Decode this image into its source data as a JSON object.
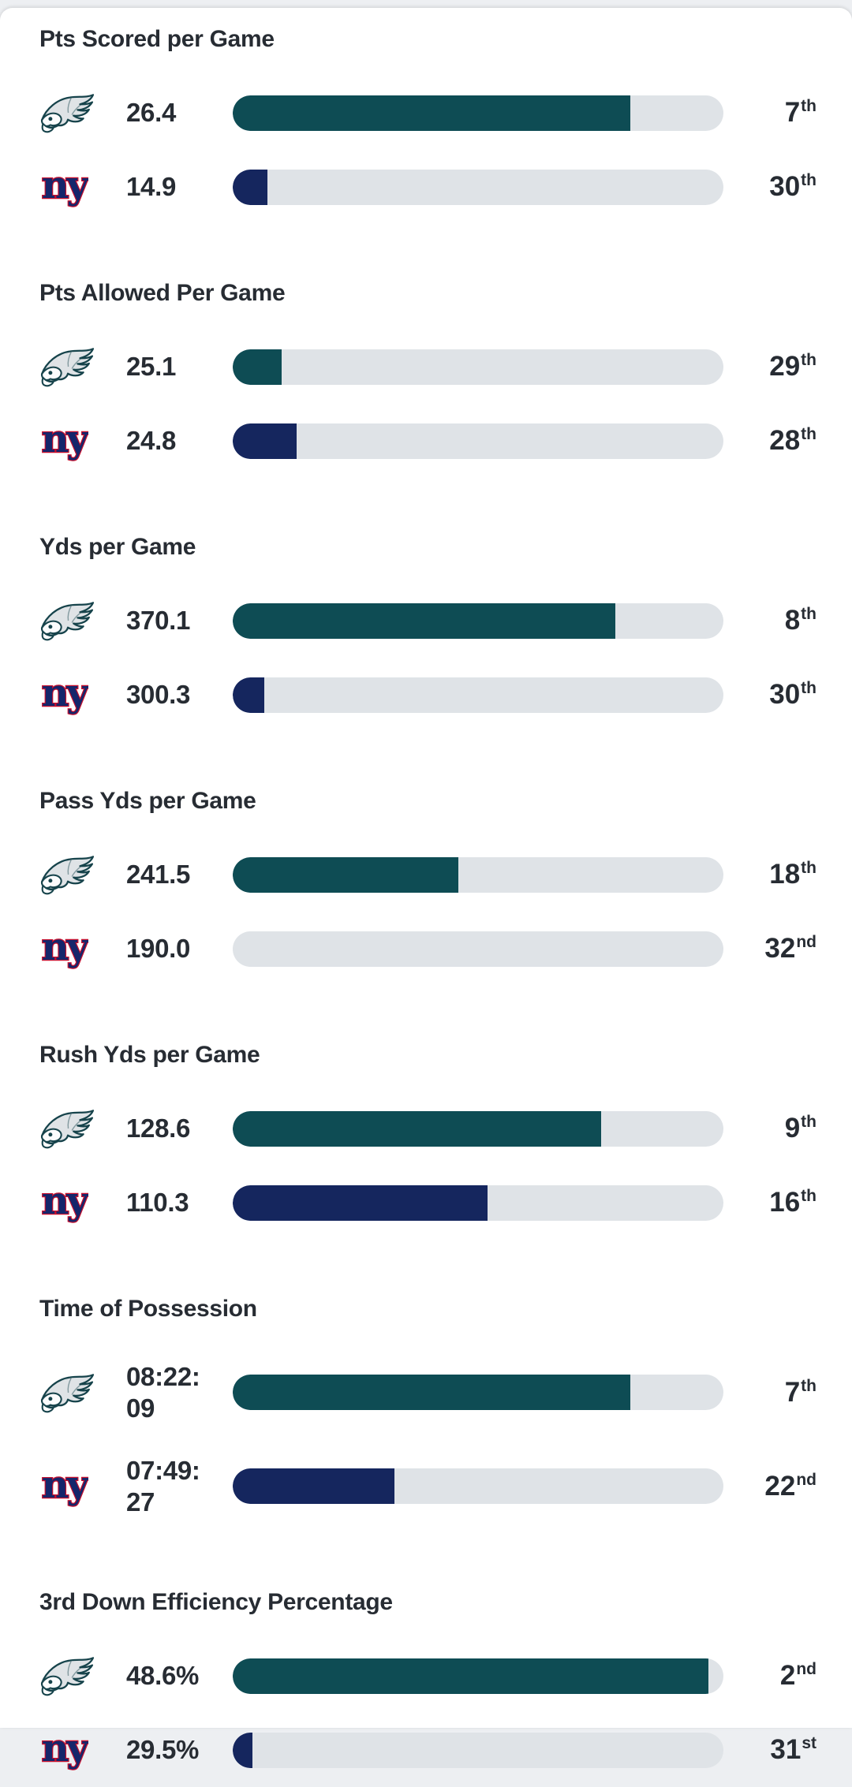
{
  "page": {
    "background_color": "#edeff2",
    "card_background": "#ffffff",
    "text_color": "#272c33",
    "bar_track_color": "#dfe3e7"
  },
  "teams": {
    "eagles": {
      "logo_icon": "eagles-logo-icon",
      "bar_color": "#0e4c54"
    },
    "giants": {
      "logo_icon": "ny-giants-logo-icon",
      "bar_color": "#15265e",
      "logo_text": "ny"
    }
  },
  "sections": [
    {
      "title": "Pts Scored per Game",
      "rows": [
        {
          "team": "eagles",
          "value": "26.4",
          "rank": "7",
          "ordinal": "th",
          "fill_pct": 81,
          "color": "#0e4c54"
        },
        {
          "team": "giants",
          "value": "14.9",
          "rank": "30",
          "ordinal": "th",
          "fill_pct": 7,
          "color": "#15265e"
        }
      ]
    },
    {
      "title": "Pts Allowed Per Game",
      "rows": [
        {
          "team": "eagles",
          "value": "25.1",
          "rank": "29",
          "ordinal": "th",
          "fill_pct": 10,
          "color": "#0e4c54"
        },
        {
          "team": "giants",
          "value": "24.8",
          "rank": "28",
          "ordinal": "th",
          "fill_pct": 13,
          "color": "#15265e"
        }
      ]
    },
    {
      "title": "Yds per Game",
      "rows": [
        {
          "team": "eagles",
          "value": "370.1",
          "rank": "8",
          "ordinal": "th",
          "fill_pct": 78,
          "color": "#0e4c54"
        },
        {
          "team": "giants",
          "value": "300.3",
          "rank": "30",
          "ordinal": "th",
          "fill_pct": 6.5,
          "color": "#15265e"
        }
      ]
    },
    {
      "title": "Pass Yds per Game",
      "rows": [
        {
          "team": "eagles",
          "value": "241.5",
          "rank": "18",
          "ordinal": "th",
          "fill_pct": 46,
          "color": "#0e4c54"
        },
        {
          "team": "giants",
          "value": "190.0",
          "rank": "32",
          "ordinal": "nd",
          "fill_pct": 0,
          "color": "#15265e"
        }
      ]
    },
    {
      "title": "Rush Yds per Game",
      "rows": [
        {
          "team": "eagles",
          "value": "128.6",
          "rank": "9",
          "ordinal": "th",
          "fill_pct": 75,
          "color": "#0e4c54"
        },
        {
          "team": "giants",
          "value": "110.3",
          "rank": "16",
          "ordinal": "th",
          "fill_pct": 52,
          "color": "#15265e"
        }
      ]
    },
    {
      "title": "Time of Possession",
      "rows": [
        {
          "team": "eagles",
          "value": "08:22:",
          "value2": "09",
          "rank": "7",
          "ordinal": "th",
          "fill_pct": 81,
          "color": "#0e4c54"
        },
        {
          "team": "giants",
          "value": "07:49:",
          "value2": "27",
          "rank": "22",
          "ordinal": "nd",
          "fill_pct": 33,
          "color": "#15265e"
        }
      ]
    },
    {
      "title": "3rd Down Efficiency Percentage",
      "rows": [
        {
          "team": "eagles",
          "value": "48.6%",
          "rank": "2",
          "ordinal": "nd",
          "fill_pct": 97,
          "color": "#0e4c54"
        },
        {
          "team": "giants",
          "value": "29.5%",
          "rank": "31",
          "ordinal": "st",
          "fill_pct": 4,
          "color": "#15265e"
        }
      ]
    }
  ],
  "chart_data": {
    "type": "bar",
    "categories": [
      "Pts Scored per Game",
      "Pts Allowed Per Game",
      "Yds per Game",
      "Pass Yds per Game",
      "Rush Yds per Game",
      "Time of Possession",
      "3rd Down Efficiency Percentage"
    ],
    "series": [
      {
        "name": "Eagles",
        "values": [
          "26.4",
          "25.1",
          "370.1",
          "241.5",
          "128.6",
          "08:22:09",
          "48.6%"
        ],
        "ranks": [
          "7th",
          "29th",
          "8th",
          "18th",
          "9th",
          "7th",
          "2nd"
        ]
      },
      {
        "name": "Giants",
        "values": [
          "14.9",
          "24.8",
          "300.3",
          "190.0",
          "110.3",
          "07:49:27",
          "29.5%"
        ],
        "ranks": [
          "30th",
          "28th",
          "30th",
          "32nd",
          "16th",
          "22nd",
          "31st"
        ]
      }
    ],
    "legend_position": "none",
    "grid": false
  }
}
